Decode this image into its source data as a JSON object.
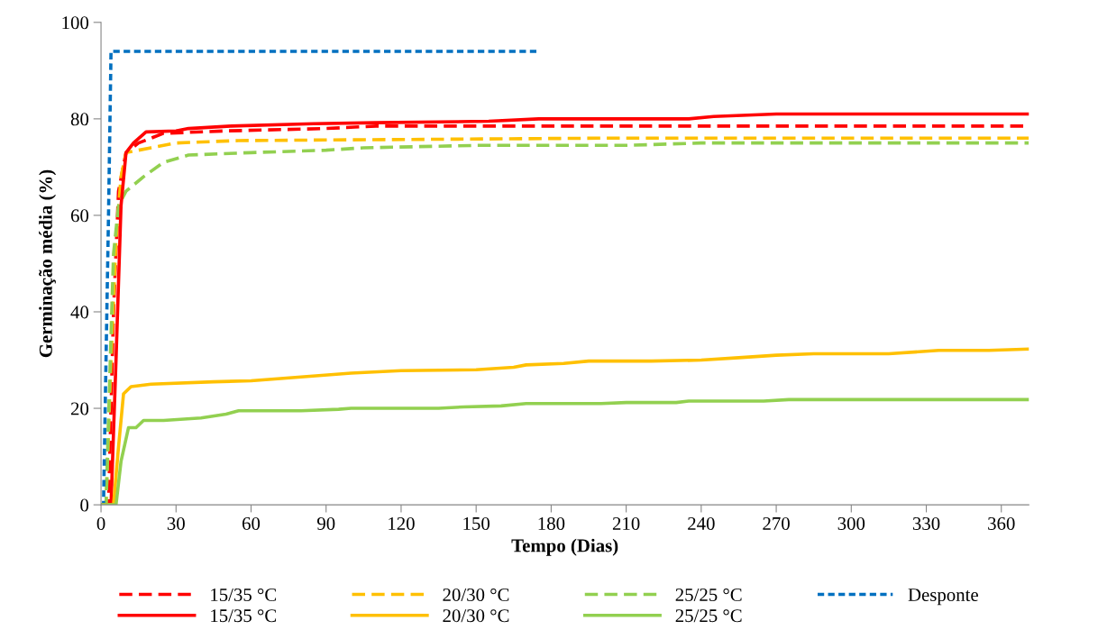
{
  "chart_data": {
    "type": "line",
    "xlabel": "Tempo (Dias)",
    "ylabel": "Germinação média (%)",
    "xlim": [
      0,
      371
    ],
    "xticks": [
      0,
      30,
      60,
      90,
      120,
      150,
      180,
      210,
      240,
      270,
      300,
      330,
      360
    ],
    "ylim": [
      0,
      100
    ],
    "yticks": [
      0,
      20,
      40,
      60,
      80,
      100
    ],
    "grid": false,
    "legend": "bottom",
    "marker": "none",
    "series": [
      {
        "name": "15/35 °C",
        "color": "#ff0000",
        "line_style": "dashed",
        "x": [
          0,
          3,
          5,
          7,
          10,
          15,
          25,
          50,
          90,
          110,
          371
        ],
        "values": [
          0,
          0,
          40,
          65,
          73,
          75,
          77,
          77.5,
          78,
          78.5,
          78.5
        ]
      },
      {
        "name": "20/30 °C",
        "color": "#ffc000",
        "line_style": "dashed",
        "x": [
          0,
          2,
          4,
          6,
          8,
          10,
          20,
          30,
          55,
          200,
          371
        ],
        "values": [
          0,
          0,
          30,
          55,
          68,
          73,
          74,
          75,
          75.5,
          76,
          76
        ]
      },
      {
        "name": "25/25 °C",
        "color": "#92d050",
        "line_style": "dashed",
        "x": [
          0,
          2,
          4,
          5,
          7,
          10,
          17,
          25,
          35,
          60,
          90,
          105,
          150,
          210,
          240,
          371
        ],
        "values": [
          0,
          0,
          35,
          52,
          62,
          65,
          68,
          71,
          72.5,
          73,
          73.5,
          74,
          74.5,
          74.5,
          75,
          75
        ]
      },
      {
        "name": "Desponte",
        "color": "#0070c0",
        "line_style": "dotted",
        "x": [
          0,
          1,
          3,
          4,
          175
        ],
        "values": [
          0,
          0,
          60,
          94,
          94
        ]
      },
      {
        "name": "15/35 °C",
        "color": "#ff0000",
        "line_style": "solid",
        "x": [
          0,
          4,
          6,
          8,
          10,
          13,
          18,
          30,
          35,
          52,
          85,
          110,
          155,
          175,
          235,
          245,
          270,
          371
        ],
        "values": [
          0,
          0,
          30,
          62,
          73,
          75,
          77.3,
          77.5,
          78,
          78.5,
          79,
          79.2,
          79.5,
          80,
          80,
          80.5,
          81,
          81
        ]
      },
      {
        "name": "20/30 °C",
        "color": "#ffc000",
        "line_style": "solid",
        "x": [
          0,
          5,
          7,
          9,
          12,
          20,
          45,
          60,
          80,
          100,
          120,
          150,
          165,
          170,
          185,
          195,
          220,
          240,
          255,
          270,
          285,
          315,
          335,
          355,
          371
        ],
        "values": [
          0,
          0,
          12,
          23,
          24.5,
          25,
          25.5,
          25.7,
          26.5,
          27.3,
          27.8,
          28,
          28.5,
          29,
          29.3,
          29.8,
          29.8,
          30,
          30.5,
          31,
          31.3,
          31.3,
          32,
          32,
          32.3
        ]
      },
      {
        "name": "25/25 °C",
        "color": "#92d050",
        "line_style": "solid",
        "x": [
          0,
          6,
          8,
          11,
          14,
          17,
          25,
          40,
          50,
          55,
          80,
          95,
          100,
          135,
          145,
          160,
          170,
          200,
          210,
          230,
          235,
          265,
          275,
          371
        ],
        "values": [
          0,
          0,
          9,
          16,
          16,
          17.5,
          17.5,
          18,
          18.8,
          19.5,
          19.5,
          19.8,
          20,
          20,
          20.3,
          20.5,
          21,
          21,
          21.2,
          21.2,
          21.5,
          21.5,
          21.8,
          21.8
        ]
      }
    ]
  }
}
